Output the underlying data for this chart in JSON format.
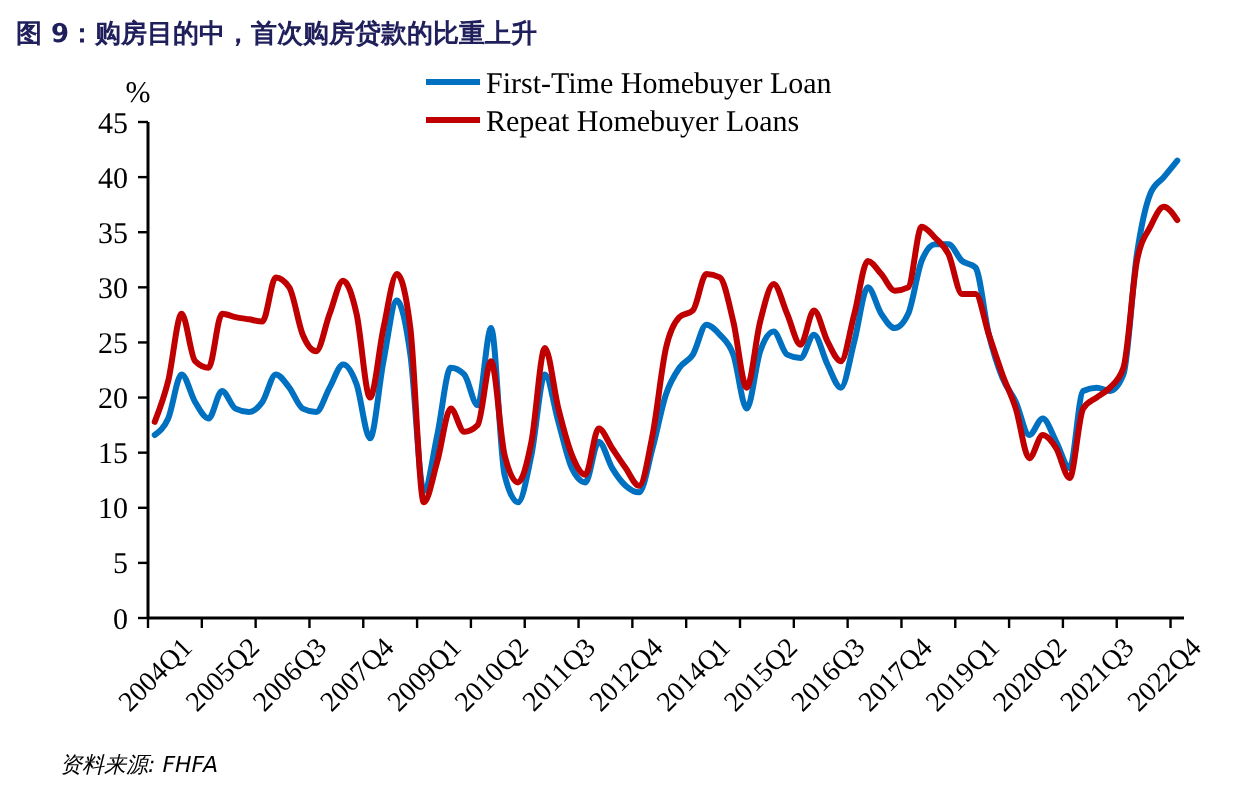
{
  "chart_data": {
    "type": "line",
    "title": "图 9：购房目的中，首次购房贷款的比重上升",
    "ylabel": "%",
    "annotations": [
      "资料来源: FHFA"
    ],
    "categories": [
      "2004Q1",
      null,
      null,
      null,
      null,
      "2005Q2",
      null,
      null,
      null,
      null,
      "2006Q3",
      null,
      null,
      null,
      null,
      "2007Q4",
      null,
      null,
      null,
      null,
      "2009Q1",
      null,
      null,
      null,
      null,
      "2010Q2",
      null,
      null,
      null,
      null,
      "2011Q3",
      null,
      null,
      null,
      null,
      "2012Q4",
      null,
      null,
      null,
      null,
      "2014Q1",
      null,
      null,
      null,
      null,
      "2015Q2",
      null,
      null,
      null,
      null,
      "2016Q3",
      null,
      null,
      null,
      null,
      "2017Q4",
      null,
      null,
      null,
      null,
      "2019Q1",
      null,
      null,
      null,
      null,
      "2020Q2",
      null,
      null,
      null,
      null,
      "2021Q3",
      null,
      null,
      null,
      null,
      "2022Q4",
      null
    ],
    "series": [
      {
        "name": "First-Time Homebuyer Loan",
        "color": "#0070c0",
        "values": [
          16.6,
          18.1,
          22.1,
          19.6,
          18.1,
          20.6,
          19,
          18.7,
          19.6,
          22.1,
          20.9,
          19,
          18.7,
          20.9,
          23,
          21.2,
          16.3,
          23.3,
          28.8,
          23.9,
          11.5,
          16.6,
          22.7,
          22.1,
          19.3,
          26.3,
          13,
          10.5,
          14.8,
          22.1,
          17.8,
          13.6,
          12.3,
          16,
          13.6,
          12,
          11.4,
          15.4,
          20.3,
          22.7,
          23.9,
          26.6,
          25.7,
          23.9,
          19,
          24.2,
          26,
          23.9,
          23.6,
          25.7,
          23,
          20.9,
          25.1,
          30,
          27.6,
          26.3,
          27.6,
          32.4,
          33.9,
          33.9,
          32.4,
          31.8,
          25.7,
          21.8,
          19.6,
          16.6,
          18.1,
          16,
          13.6,
          20.6,
          20.9,
          20.6,
          22.1,
          33,
          38.5,
          40,
          41.5
        ]
      },
      {
        "name": "Repeat Homebuyer Loans",
        "color": "#c00000",
        "values": [
          17.8,
          21.5,
          27.6,
          23.3,
          22.7,
          27.6,
          27.3,
          27.1,
          26.9,
          30.9,
          30,
          25.7,
          24.2,
          27.6,
          30.6,
          27.6,
          20,
          26.3,
          31.2,
          26.3,
          10.5,
          14.2,
          19,
          16.9,
          17.5,
          23.3,
          14.8,
          12.3,
          16,
          24.5,
          19,
          14.8,
          13,
          17.2,
          15.4,
          13.6,
          12,
          16.6,
          24.5,
          27.3,
          27.9,
          31.2,
          30.9,
          26.9,
          20.9,
          26.9,
          30.3,
          27.6,
          24.8,
          27.9,
          25.1,
          23.3,
          27.6,
          32.4,
          31.2,
          29.7,
          30,
          35.5,
          34.5,
          33,
          29.4,
          29.4,
          25.7,
          22.1,
          19,
          14.5,
          16.6,
          15.4,
          12.7,
          19,
          20,
          20.9,
          22.7,
          32.4,
          35.5,
          37.3,
          36.1
        ]
      }
    ],
    "ylim": [
      0,
      45
    ],
    "yticks": [
      0,
      5,
      10,
      15,
      20,
      25,
      30,
      35,
      40,
      45
    ],
    "grid": false,
    "legend": "top",
    "line_style": "solid",
    "marker": "none"
  }
}
